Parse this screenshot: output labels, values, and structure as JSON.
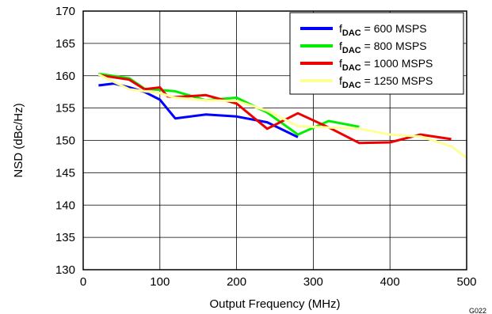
{
  "figure_id": "G022",
  "chart_data": {
    "type": "line",
    "xlabel": "Output Frequency (MHz)",
    "ylabel": "NSD (dBc/Hz)",
    "xlim": [
      0,
      500
    ],
    "ylim": [
      130,
      170
    ],
    "x_ticks": [
      "0",
      "100",
      "200",
      "300",
      "400",
      "500"
    ],
    "y_ticks": [
      "130",
      "135",
      "140",
      "145",
      "150",
      "155",
      "160",
      "165",
      "170"
    ],
    "grid": true,
    "legend_position": "top-right",
    "series": [
      {
        "name": "f_DAC = 600 MSPS",
        "legend": {
          "main": "f",
          "sub": "DAC",
          "rest": " = 600 MSPS"
        },
        "color": "#0000ff",
        "points": [
          [
            20,
            158.5
          ],
          [
            40,
            158.8
          ],
          [
            60,
            158.2
          ],
          [
            80,
            157.5
          ],
          [
            100,
            156.3
          ],
          [
            120,
            153.4
          ],
          [
            160,
            154.0
          ],
          [
            200,
            153.7
          ],
          [
            240,
            152.8
          ],
          [
            280,
            150.5
          ]
        ]
      },
      {
        "name": "f_DAC = 800 MSPS",
        "legend": {
          "main": "f",
          "sub": "DAC",
          "rest": " = 800 MSPS"
        },
        "color": "#00ee00",
        "points": [
          [
            20,
            160.3
          ],
          [
            60,
            159.6
          ],
          [
            80,
            158.0
          ],
          [
            100,
            157.8
          ],
          [
            120,
            157.6
          ],
          [
            160,
            156.2
          ],
          [
            200,
            156.6
          ],
          [
            240,
            154.3
          ],
          [
            280,
            150.9
          ],
          [
            320,
            153.0
          ],
          [
            360,
            152.1
          ]
        ]
      },
      {
        "name": "f_DAC = 1000 MSPS",
        "legend": {
          "main": "f",
          "sub": "DAC",
          "rest": " = 1000 MSPS"
        },
        "color": "#ee0000",
        "points": [
          [
            20,
            160.1
          ],
          [
            60,
            159.4
          ],
          [
            80,
            157.9
          ],
          [
            100,
            158.2
          ],
          [
            110,
            156.8
          ],
          [
            120,
            156.7
          ],
          [
            160,
            157.0
          ],
          [
            200,
            155.7
          ],
          [
            240,
            151.8
          ],
          [
            280,
            154.2
          ],
          [
            320,
            152.0
          ],
          [
            360,
            149.6
          ],
          [
            400,
            149.7
          ],
          [
            440,
            150.9
          ],
          [
            480,
            150.2
          ]
        ]
      },
      {
        "name": "f_DAC = 1250 MSPS",
        "legend": {
          "main": "f",
          "sub": "DAC",
          "rest": " = 1250 MSPS"
        },
        "color": "#ffff99",
        "points": [
          [
            20,
            160.2
          ],
          [
            60,
            157.9
          ],
          [
            100,
            157.3
          ],
          [
            120,
            156.6
          ],
          [
            160,
            156.2
          ],
          [
            200,
            156.1
          ],
          [
            240,
            154.6
          ],
          [
            280,
            152.2
          ],
          [
            320,
            152.0
          ],
          [
            360,
            151.8
          ],
          [
            400,
            150.9
          ],
          [
            440,
            150.6
          ],
          [
            480,
            149.1
          ],
          [
            500,
            147.3
          ]
        ]
      }
    ]
  }
}
